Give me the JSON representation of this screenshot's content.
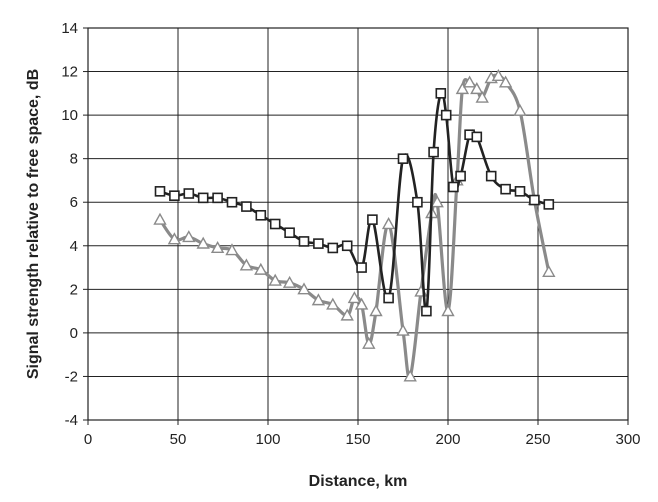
{
  "chart_data": {
    "type": "line",
    "xlabel": "Distance, km",
    "ylabel": "Signal strength relative to free space, dB",
    "xlim": [
      0,
      300
    ],
    "ylim": [
      -4,
      14
    ],
    "xticks": [
      0,
      50,
      100,
      150,
      200,
      250,
      300
    ],
    "yticks": [
      -4,
      -2,
      0,
      2,
      4,
      6,
      8,
      10,
      12,
      14
    ],
    "grid": true,
    "series": [
      {
        "marker": "square",
        "color": "#222222",
        "points": [
          [
            40,
            6.5
          ],
          [
            48,
            6.3
          ],
          [
            56,
            6.4
          ],
          [
            64,
            6.2
          ],
          [
            72,
            6.2
          ],
          [
            80,
            6.0
          ],
          [
            88,
            5.8
          ],
          [
            96,
            5.4
          ],
          [
            104,
            5.0
          ],
          [
            112,
            4.6
          ],
          [
            120,
            4.2
          ],
          [
            128,
            4.1
          ],
          [
            136,
            3.9
          ],
          [
            144,
            4.0
          ],
          [
            152,
            3.0
          ],
          [
            158,
            5.2
          ],
          [
            167,
            1.6
          ],
          [
            175,
            8.0
          ],
          [
            183,
            6.0
          ],
          [
            188,
            1.0
          ],
          [
            192,
            8.3
          ],
          [
            196,
            11.0
          ],
          [
            199,
            10.0
          ],
          [
            203,
            6.7
          ],
          [
            207,
            7.2
          ],
          [
            212,
            9.1
          ],
          [
            216,
            9.0
          ],
          [
            224,
            7.2
          ],
          [
            232,
            6.6
          ],
          [
            240,
            6.5
          ],
          [
            248,
            6.1
          ],
          [
            256,
            5.9
          ]
        ]
      },
      {
        "marker": "triangle",
        "color": "#8a8a8a",
        "points": [
          [
            40,
            5.2
          ],
          [
            48,
            4.3
          ],
          [
            56,
            4.4
          ],
          [
            64,
            4.1
          ],
          [
            72,
            3.9
          ],
          [
            80,
            3.8
          ],
          [
            88,
            3.1
          ],
          [
            96,
            2.9
          ],
          [
            104,
            2.4
          ],
          [
            112,
            2.3
          ],
          [
            120,
            2.0
          ],
          [
            128,
            1.5
          ],
          [
            136,
            1.3
          ],
          [
            144,
            0.8
          ],
          [
            148,
            1.6
          ],
          [
            152,
            1.3
          ],
          [
            156,
            -0.5
          ],
          [
            160,
            1.0
          ],
          [
            167,
            5.0
          ],
          [
            175,
            0.1
          ],
          [
            179,
            -2.0
          ],
          [
            185,
            1.9
          ],
          [
            191,
            5.5
          ],
          [
            194,
            6.0
          ],
          [
            200,
            1.0
          ],
          [
            205,
            7.0
          ],
          [
            208,
            11.2
          ],
          [
            212,
            11.5
          ],
          [
            216,
            11.2
          ],
          [
            219,
            10.8
          ],
          [
            224,
            11.7
          ],
          [
            228,
            11.8
          ],
          [
            232,
            11.5
          ],
          [
            240,
            10.2
          ],
          [
            248,
            6.1
          ],
          [
            256,
            2.8
          ]
        ]
      }
    ]
  }
}
